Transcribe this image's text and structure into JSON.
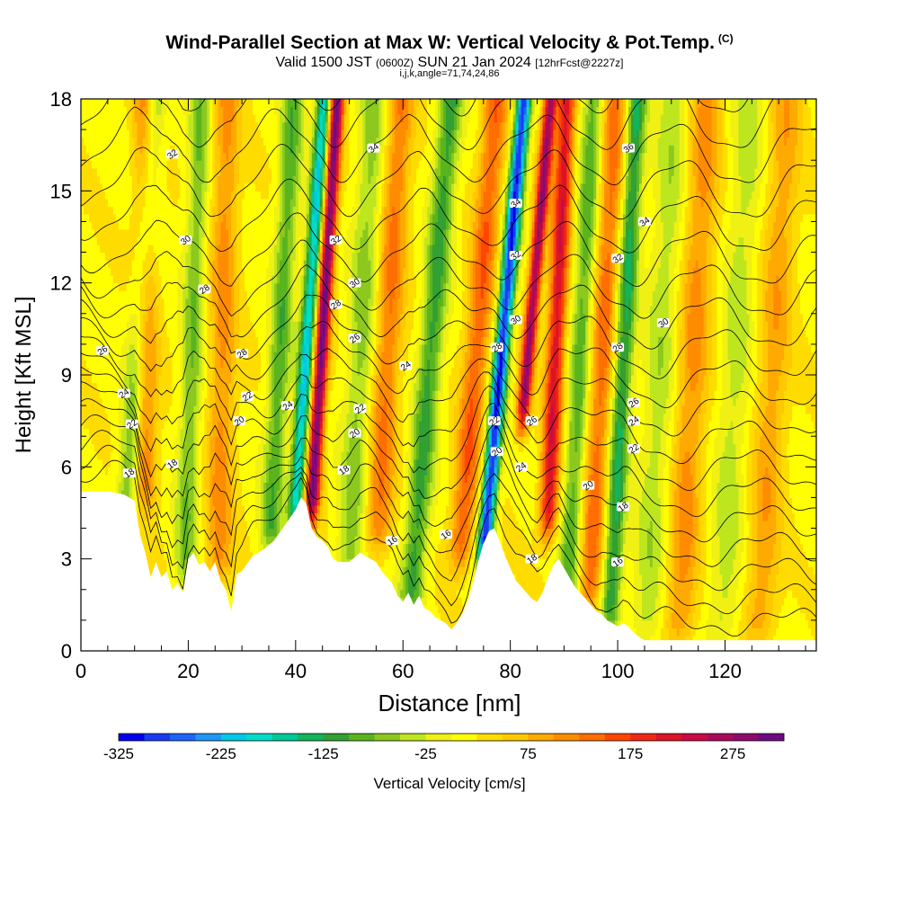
{
  "header": {
    "title": "Wind-Parallel Section at Max W: Vertical Velocity & Pot.Temp.",
    "title_badge": "(C)",
    "subtitle_pre": "Valid 1500 JST",
    "subtitle_utc": "(0600Z)",
    "subtitle_date": "SUN 21 Jan 2024",
    "subtitle_fcst": "[12hrFcst@2227z]",
    "indices": "i,j,k,angle=71,74,24,86"
  },
  "chart_data": {
    "type": "heatmap",
    "xlabel": "Distance [nm]",
    "ylabel": "Height [Kft MSL]",
    "xlim": [
      0,
      137
    ],
    "ylim": [
      0,
      18
    ],
    "x_ticks": [
      0,
      20,
      40,
      60,
      80,
      100,
      120
    ],
    "y_ticks": [
      0,
      3,
      6,
      9,
      12,
      15,
      18
    ],
    "colorbar": {
      "label": "Vertical Velocity [cm/s]",
      "min": -325,
      "max": 325,
      "step": 25,
      "tick_labels": [
        "-325",
        "-225",
        "-125",
        "-25",
        "75",
        "175",
        "275"
      ],
      "colors": [
        "#0000ee",
        "#1a3cf0",
        "#1e64f5",
        "#1e96f5",
        "#00c8e6",
        "#00dcc8",
        "#00c896",
        "#14b45a",
        "#32a032",
        "#5ab41e",
        "#8cc81e",
        "#bee61e",
        "#f0f014",
        "#ffff00",
        "#ffdc00",
        "#ffc800",
        "#ffaa00",
        "#ff8c00",
        "#ff6e00",
        "#ff4600",
        "#f02814",
        "#dc1428",
        "#c80a46",
        "#aa0a5a",
        "#8c0a6e",
        "#6e0a82"
      ]
    },
    "terrain_kft": [
      [
        0,
        5.2
      ],
      [
        5,
        5.2
      ],
      [
        8,
        5.1
      ],
      [
        10,
        4.9
      ],
      [
        11,
        3.8
      ],
      [
        12,
        3.2
      ],
      [
        13,
        2.4
      ],
      [
        14,
        2.9
      ],
      [
        15,
        2.4
      ],
      [
        16,
        2.6
      ],
      [
        17,
        2.0
      ],
      [
        18,
        2.2
      ],
      [
        19,
        1.9
      ],
      [
        20,
        3.0
      ],
      [
        21,
        3.2
      ],
      [
        22,
        2.8
      ],
      [
        23,
        2.9
      ],
      [
        24,
        2.6
      ],
      [
        25,
        2.9
      ],
      [
        26,
        2.3
      ],
      [
        27,
        2.0
      ],
      [
        28,
        1.3
      ],
      [
        29,
        2.5
      ],
      [
        30,
        2.6
      ],
      [
        32,
        3.1
      ],
      [
        34,
        3.3
      ],
      [
        36,
        3.6
      ],
      [
        38,
        4.1
      ],
      [
        40,
        4.6
      ],
      [
        41,
        5.0
      ],
      [
        42,
        4.8
      ],
      [
        43,
        4.0
      ],
      [
        44,
        3.7
      ],
      [
        45,
        3.6
      ],
      [
        46,
        3.4
      ],
      [
        47,
        3.0
      ],
      [
        48,
        2.9
      ],
      [
        50,
        2.9
      ],
      [
        52,
        3.2
      ],
      [
        54,
        3.0
      ],
      [
        55,
        2.9
      ],
      [
        56,
        2.6
      ],
      [
        57,
        2.4
      ],
      [
        58,
        2.2
      ],
      [
        59,
        1.8
      ],
      [
        60,
        1.6
      ],
      [
        61,
        1.9
      ],
      [
        62,
        1.5
      ],
      [
        63,
        1.8
      ],
      [
        64,
        1.4
      ],
      [
        65,
        1.3
      ],
      [
        66,
        1.1
      ],
      [
        67,
        1.0
      ],
      [
        68,
        0.9
      ],
      [
        69,
        0.7
      ],
      [
        70,
        0.9
      ],
      [
        71,
        1.2
      ],
      [
        72,
        1.6
      ],
      [
        73,
        2.2
      ],
      [
        74,
        2.9
      ],
      [
        75,
        3.5
      ],
      [
        76,
        3.9
      ],
      [
        77,
        4.0
      ],
      [
        78,
        3.6
      ],
      [
        79,
        3.1
      ],
      [
        80,
        2.7
      ],
      [
        81,
        2.3
      ],
      [
        82,
        2.1
      ],
      [
        83,
        1.9
      ],
      [
        84,
        1.7
      ],
      [
        85,
        1.6
      ],
      [
        86,
        1.9
      ],
      [
        87,
        2.4
      ],
      [
        88,
        2.8
      ],
      [
        89,
        3.0
      ],
      [
        90,
        2.7
      ],
      [
        91,
        2.4
      ],
      [
        92,
        2.1
      ],
      [
        93,
        1.9
      ],
      [
        94,
        1.7
      ],
      [
        95,
        1.5
      ],
      [
        96,
        1.3
      ],
      [
        97,
        1.2
      ],
      [
        98,
        1.0
      ],
      [
        99,
        0.9
      ],
      [
        100,
        0.8
      ],
      [
        101,
        0.9
      ],
      [
        102,
        0.8
      ],
      [
        103,
        0.6
      ],
      [
        104,
        0.45
      ],
      [
        105,
        0.35
      ],
      [
        106,
        0.35
      ],
      [
        137,
        0.35
      ]
    ],
    "vertical_velocity_features": [
      {
        "x": 12,
        "width": 2.2,
        "tilt": 0.0,
        "z_bottom": 5.5,
        "w": 110
      },
      {
        "x": 26,
        "width": 2.5,
        "tilt": 0.1,
        "z_bottom": 3.0,
        "w": 90
      },
      {
        "x": 43.5,
        "width": 1.3,
        "tilt": 0.35,
        "z_bottom": 5.0,
        "w": 290
      },
      {
        "x": 56,
        "width": 2.5,
        "tilt": 0.3,
        "z_bottom": 4.0,
        "w": 110
      },
      {
        "x": 72,
        "width": 2.3,
        "tilt": 0.45,
        "z_bottom": 3.5,
        "w": 130
      },
      {
        "x": 81.5,
        "width": 1.2,
        "tilt": 0.5,
        "z_bottom": 8.0,
        "w": 260
      },
      {
        "x": 87.5,
        "width": 1.7,
        "tilt": 0.25,
        "z_bottom": 4.5,
        "w": 200
      },
      {
        "x": 96,
        "width": 2.3,
        "tilt": 0.3,
        "z_bottom": 2.0,
        "w": 120
      },
      {
        "x": 113,
        "width": 3.0,
        "tilt": 0.3,
        "z_bottom": 1.0,
        "w": 90
      },
      {
        "x": 128,
        "width": 3.0,
        "tilt": 0.3,
        "z_bottom": 1.0,
        "w": 75
      },
      {
        "x": 9,
        "width": 2.0,
        "tilt": 0.4,
        "z_bottom": 5.0,
        "w": -100
      },
      {
        "x": 20,
        "width": 2.0,
        "tilt": 0.2,
        "z_bottom": 3.0,
        "w": -90
      },
      {
        "x": 36,
        "width": 2.0,
        "tilt": 0.3,
        "z_bottom": 4.0,
        "w": -110
      },
      {
        "x": 40.5,
        "width": 1.4,
        "tilt": 0.4,
        "z_bottom": 4.8,
        "w": -220
      },
      {
        "x": 51,
        "width": 2.5,
        "tilt": 0.3,
        "z_bottom": 3.0,
        "w": -80
      },
      {
        "x": 63.5,
        "width": 2.2,
        "tilt": 0.45,
        "z_bottom": 2.0,
        "w": -130
      },
      {
        "x": 76.5,
        "width": 1.4,
        "tilt": 0.5,
        "z_bottom": 3.5,
        "w": -320
      },
      {
        "x": 92,
        "width": 2.0,
        "tilt": 0.3,
        "z_bottom": 2.0,
        "w": -110
      },
      {
        "x": 100,
        "width": 1.8,
        "tilt": 0.3,
        "z_bottom": 1.5,
        "w": -150
      },
      {
        "x": 107,
        "width": 3.0,
        "tilt": 0.3,
        "z_bottom": 1.0,
        "w": -60
      },
      {
        "x": 121,
        "width": 3.0,
        "tilt": 0.3,
        "z_bottom": 1.0,
        "w": -55
      }
    ],
    "potential_temperature_contours": {
      "min": 16,
      "max": 36,
      "interval": 1
    },
    "contour_labels": [
      {
        "x": 17,
        "z": 16.2,
        "text": "32"
      },
      {
        "x": 54.5,
        "z": 16.4,
        "text": "34"
      },
      {
        "x": 102,
        "z": 16.4,
        "text": "36"
      },
      {
        "x": 81,
        "z": 14.6,
        "text": "34"
      },
      {
        "x": 105,
        "z": 14.0,
        "text": "34"
      },
      {
        "x": 19.5,
        "z": 13.4,
        "text": "30"
      },
      {
        "x": 47.5,
        "z": 13.4,
        "text": "32"
      },
      {
        "x": 81,
        "z": 12.9,
        "text": "32"
      },
      {
        "x": 100,
        "z": 12.8,
        "text": "32"
      },
      {
        "x": 51,
        "z": 12.0,
        "text": "30"
      },
      {
        "x": 23,
        "z": 11.8,
        "text": "28"
      },
      {
        "x": 47.5,
        "z": 11.3,
        "text": "28"
      },
      {
        "x": 81,
        "z": 10.8,
        "text": "30"
      },
      {
        "x": 108.5,
        "z": 10.7,
        "text": "30"
      },
      {
        "x": 4,
        "z": 9.8,
        "text": "26"
      },
      {
        "x": 51,
        "z": 10.2,
        "text": "26"
      },
      {
        "x": 77.5,
        "z": 9.9,
        "text": "28"
      },
      {
        "x": 100,
        "z": 9.9,
        "text": "28"
      },
      {
        "x": 30,
        "z": 9.7,
        "text": "28"
      },
      {
        "x": 60.5,
        "z": 9.3,
        "text": "24"
      },
      {
        "x": 8,
        "z": 8.4,
        "text": "24"
      },
      {
        "x": 31,
        "z": 8.3,
        "text": "22"
      },
      {
        "x": 38.5,
        "z": 8.0,
        "text": "24"
      },
      {
        "x": 52,
        "z": 7.9,
        "text": "22"
      },
      {
        "x": 103,
        "z": 8.1,
        "text": "26"
      },
      {
        "x": 9.5,
        "z": 7.4,
        "text": "22"
      },
      {
        "x": 29.5,
        "z": 7.5,
        "text": "20"
      },
      {
        "x": 77,
        "z": 7.5,
        "text": "22"
      },
      {
        "x": 84,
        "z": 7.5,
        "text": "26"
      },
      {
        "x": 103,
        "z": 7.5,
        "text": "24"
      },
      {
        "x": 51,
        "z": 7.1,
        "text": "20"
      },
      {
        "x": 103,
        "z": 6.6,
        "text": "22"
      },
      {
        "x": 77.5,
        "z": 6.5,
        "text": "20"
      },
      {
        "x": 82,
        "z": 6.0,
        "text": "24"
      },
      {
        "x": 17,
        "z": 6.1,
        "text": "18"
      },
      {
        "x": 49,
        "z": 5.9,
        "text": "18"
      },
      {
        "x": 9,
        "z": 5.8,
        "text": "18"
      },
      {
        "x": 94.5,
        "z": 5.4,
        "text": "20"
      },
      {
        "x": 101,
        "z": 4.7,
        "text": "18"
      },
      {
        "x": 58,
        "z": 3.6,
        "text": "16"
      },
      {
        "x": 68,
        "z": 3.8,
        "text": "16"
      },
      {
        "x": 84,
        "z": 3.0,
        "text": "18"
      },
      {
        "x": 100,
        "z": 2.9,
        "text": "16"
      }
    ]
  }
}
